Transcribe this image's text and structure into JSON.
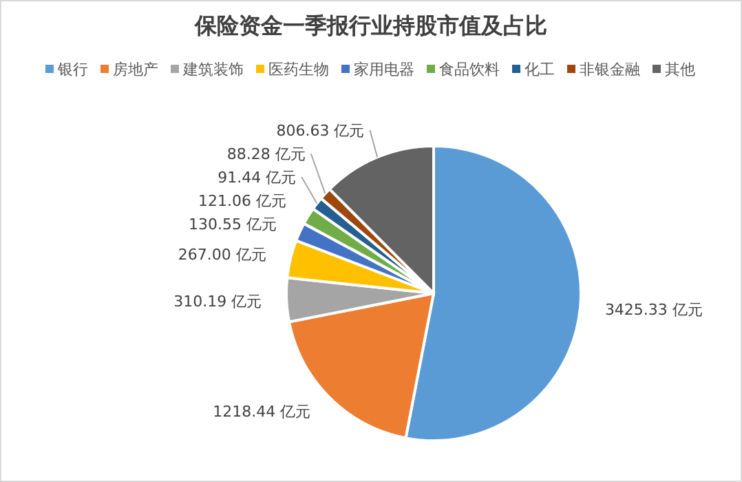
{
  "chart_data": {
    "type": "pie",
    "title": "保险资金一季报行业持股市值及占比",
    "categories": [
      "银行",
      "房地产",
      "建筑装饰",
      "医药生物",
      "家用电器",
      "食品饮料",
      "化工",
      "非银金融",
      "其他"
    ],
    "values": [
      3425.33,
      1218.44,
      310.19,
      267.0,
      130.55,
      121.06,
      91.44,
      88.28,
      806.63
    ],
    "value_labels": [
      "3425.33 亿元",
      "1218.44 亿元",
      "310.19 亿元",
      "267.00 亿元",
      "130.55 亿元",
      "121.06 亿元",
      "91.44 亿元",
      "88.28 亿元",
      "806.63 亿元"
    ],
    "colors": [
      "#5b9bd5",
      "#ed7d31",
      "#a5a5a5",
      "#ffc000",
      "#4472c4",
      "#70ad47",
      "#255e91",
      "#9e480e",
      "#636363"
    ],
    "legend": "top"
  }
}
